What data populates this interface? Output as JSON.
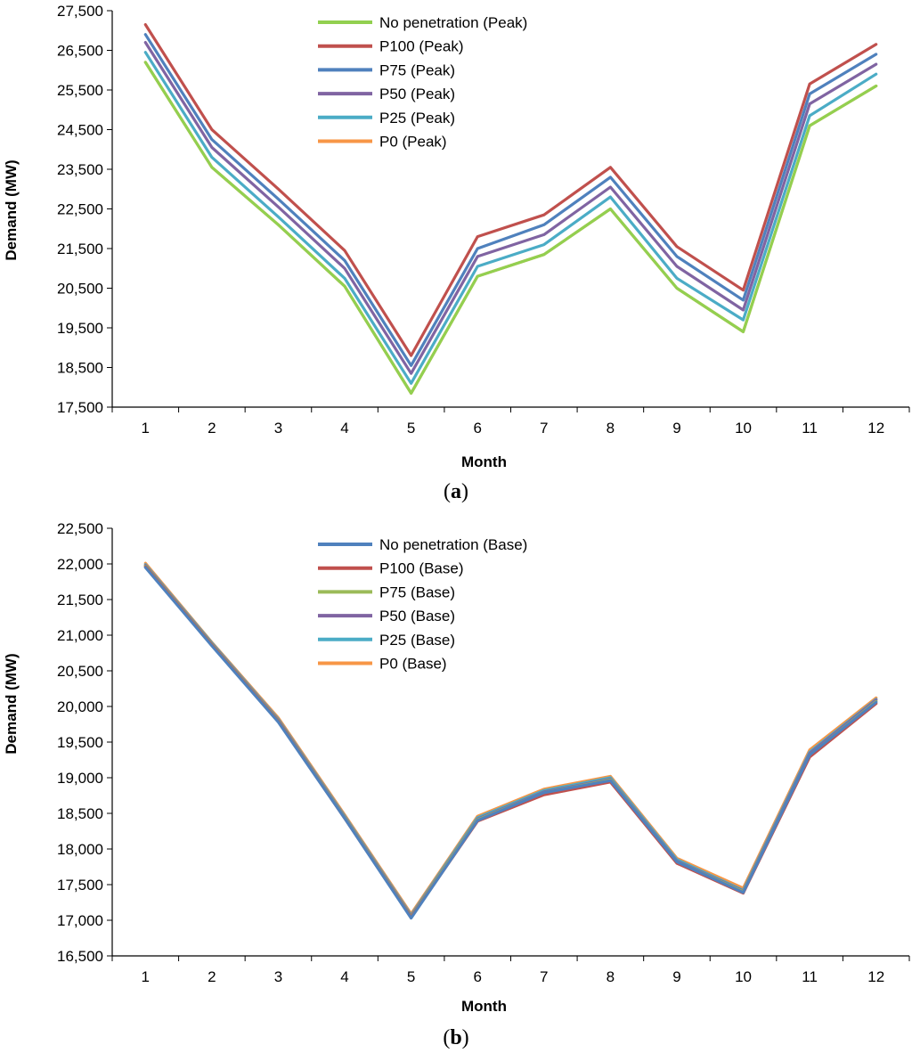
{
  "chart_data": [
    {
      "type": "line",
      "panel_label": "a",
      "xlabel": "Month",
      "ylabel": "Demand (MW)",
      "ylim": [
        17500,
        27500
      ],
      "y_ticks": [
        "17,500",
        "18,500",
        "19,500",
        "20,500",
        "21,500",
        "22,500",
        "23,500",
        "24,500",
        "25,500",
        "26,500",
        "27,500"
      ],
      "categories": [
        "1",
        "2",
        "3",
        "4",
        "5",
        "6",
        "7",
        "8",
        "9",
        "10",
        "11",
        "12"
      ],
      "legend_position": "top-center",
      "series": [
        {
          "name": "No penetration  (Peak)",
          "color": "#92d050",
          "values": [
            26200,
            23550,
            22100,
            20550,
            17850,
            20800,
            21350,
            22500,
            20500,
            19400,
            24600,
            25600
          ]
        },
        {
          "name": "P100  (Peak)",
          "color": "#c0504d",
          "values": [
            27150,
            24500,
            23000,
            21450,
            18800,
            21800,
            22350,
            23550,
            21550,
            20450,
            25650,
            26650
          ]
        },
        {
          "name": "P75  (Peak)",
          "color": "#4f81bd",
          "values": [
            26900,
            24250,
            22750,
            21200,
            18550,
            21500,
            22100,
            23300,
            21300,
            20200,
            25400,
            26400
          ]
        },
        {
          "name": "P50  (Peak)",
          "color": "#8064a2",
          "values": [
            26700,
            24050,
            22550,
            21000,
            18350,
            21300,
            21850,
            23050,
            21050,
            19950,
            25150,
            26150
          ]
        },
        {
          "name": "P25  (Peak)",
          "color": "#4bacc6",
          "values": [
            26450,
            23800,
            22300,
            20750,
            18100,
            21050,
            21600,
            22800,
            20750,
            19700,
            24850,
            25900
          ]
        },
        {
          "name": "P0  (Peak)",
          "color": "#f79646",
          "values": [
            26200,
            23550,
            22100,
            20550,
            17850,
            20800,
            21350,
            22500,
            20500,
            19400,
            24600,
            25600
          ]
        }
      ]
    },
    {
      "type": "line",
      "panel_label": "b",
      "xlabel": "Month",
      "ylabel": "Demand (MW)",
      "ylim": [
        16500,
        22500
      ],
      "y_ticks": [
        "16,500",
        "17,000",
        "17,500",
        "18,000",
        "18,500",
        "19,000",
        "19,500",
        "20,000",
        "20,500",
        "21,000",
        "21,500",
        "22,000",
        "22,500"
      ],
      "categories": [
        "1",
        "2",
        "3",
        "4",
        "5",
        "6",
        "7",
        "8",
        "9",
        "10",
        "11",
        "12"
      ],
      "legend_position": "top-center",
      "series": [
        {
          "name": "No penetration  (Base)",
          "color": "#4f81bd",
          "values": [
            21950,
            20850,
            19780,
            18430,
            17030,
            18400,
            18790,
            18960,
            17820,
            17390,
            19320,
            20060
          ]
        },
        {
          "name": "P100  (Base)",
          "color": "#c0504d",
          "values": [
            21960,
            20860,
            19790,
            18430,
            17040,
            18390,
            18760,
            18940,
            17800,
            17380,
            19290,
            20040
          ]
        },
        {
          "name": "P75  (Base)",
          "color": "#9bbb59",
          "values": [
            21970,
            20870,
            19800,
            18440,
            17050,
            18410,
            18790,
            18970,
            17820,
            17400,
            19320,
            20070
          ]
        },
        {
          "name": "P50  (Base)",
          "color": "#8064a2",
          "values": [
            21980,
            20880,
            19810,
            18450,
            17060,
            18420,
            18800,
            18980,
            17830,
            17410,
            19340,
            20090
          ]
        },
        {
          "name": "P25  (Base)",
          "color": "#4bacc6",
          "values": [
            21990,
            20890,
            19820,
            18460,
            17070,
            18440,
            18820,
            19000,
            17850,
            17420,
            19360,
            20100
          ]
        },
        {
          "name": "P0  (Base)",
          "color": "#f79646",
          "values": [
            22010,
            20900,
            19840,
            18480,
            17090,
            18460,
            18840,
            19020,
            17870,
            17450,
            19390,
            20120
          ]
        }
      ]
    }
  ]
}
